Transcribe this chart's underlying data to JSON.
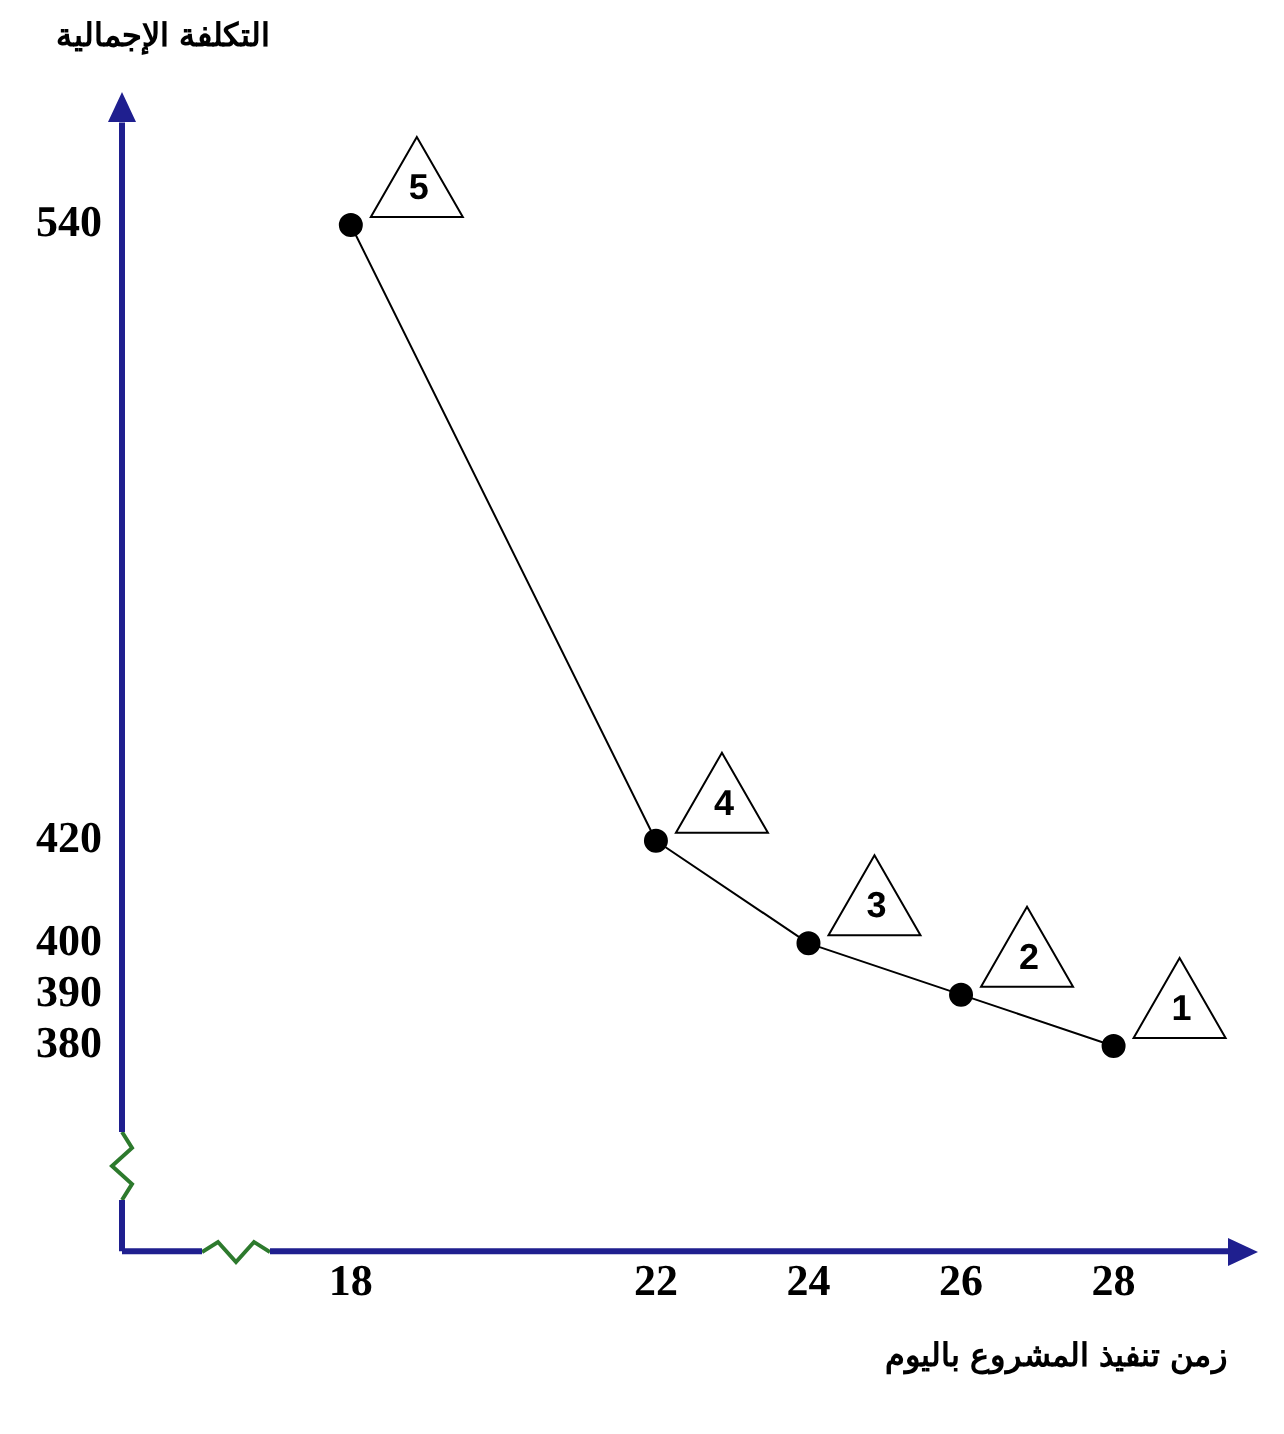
{
  "chart_data": {
    "type": "line",
    "xlabel": "زمن تنفيذ المشروع باليوم",
    "ylabel": "التكلفة الإجمالية",
    "x": [
      18,
      22,
      24,
      26,
      28
    ],
    "series": [
      {
        "color": "#000000",
        "values": [
          540,
          420,
          400,
          390,
          380
        ]
      }
    ],
    "xlim": [
      15,
      29.5
    ],
    "xticks": [
      18,
      22,
      24,
      26,
      28
    ],
    "ylim": [
      340,
      560
    ],
    "yticks": [
      380,
      390,
      400,
      420,
      540
    ],
    "grid": false,
    "legend": false,
    "marker": "circle",
    "line_style": "solid",
    "annotations": [
      {
        "text": "5",
        "x": 18,
        "y": 540
      },
      {
        "text": "4",
        "x": 22,
        "y": 420
      },
      {
        "text": "3",
        "x": 24,
        "y": 400
      },
      {
        "text": "2",
        "x": 26,
        "y": 390
      },
      {
        "text": "1",
        "x": 28,
        "y": 380
      }
    ]
  }
}
